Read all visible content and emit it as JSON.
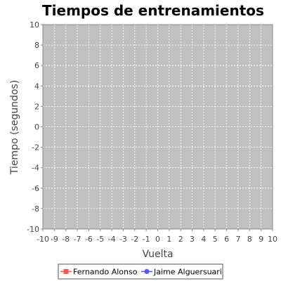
{
  "chart_data": {
    "type": "line",
    "title": "Tiempos de entrenamientos",
    "xlabel": "Vuelta",
    "ylabel": "Tiempo (segundos)",
    "xlim": [
      -10,
      10
    ],
    "ylim": [
      -10,
      10
    ],
    "x_ticks": [
      -10,
      -9,
      -8,
      -7,
      -6,
      -5,
      -4,
      -3,
      -2,
      -1,
      0,
      1,
      2,
      3,
      4,
      5,
      6,
      7,
      8,
      9,
      10
    ],
    "y_ticks": [
      10,
      8,
      6,
      4,
      2,
      0,
      -2,
      -4,
      -6,
      -8,
      -10
    ],
    "grid": true,
    "legend_position": "bottom",
    "series": [
      {
        "name": "Fernando Alonso",
        "color": "#ff5555",
        "marker": "square",
        "values": []
      },
      {
        "name": "Jaime Alguersuari",
        "color": "#5555ff",
        "marker": "circle",
        "values": []
      }
    ]
  },
  "colors": {
    "plot_background": "#c0c0c0",
    "gridline": "#ffffff",
    "axis": "#888888"
  }
}
